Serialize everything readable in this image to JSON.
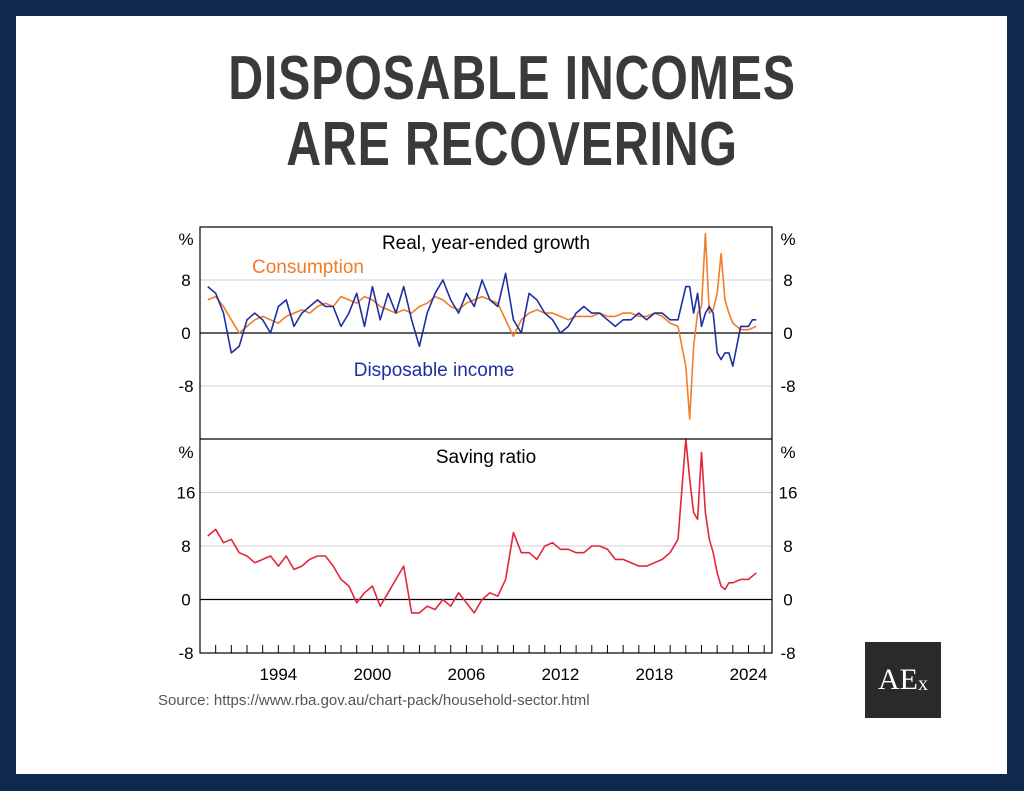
{
  "title": {
    "line1": "DISPOSABLE INCOMES",
    "line2": "ARE RECOVERING"
  },
  "source": "Source: https://www.rba.gov.au/chart-pack/household-sector.html",
  "logo": {
    "text": "AE",
    "sub": "x"
  },
  "colors": {
    "frame": "#0f2a4c",
    "consumption": "#f07d28",
    "income": "#1f2fa3",
    "saving": "#e0283c"
  },
  "chart_data": [
    {
      "type": "line",
      "title": "Real, year-ended growth",
      "ylabel": "%",
      "ylim": [
        -16,
        16
      ],
      "yticks": [
        "8",
        "0",
        "-8"
      ],
      "xlim": [
        1989,
        2025.5
      ],
      "series": [
        {
          "name": "Consumption",
          "color": "#f07d28",
          "x": [
            1989.5,
            1990,
            1990.5,
            1991,
            1991.5,
            1992,
            1992.5,
            1993,
            1993.5,
            1994,
            1994.5,
            1995,
            1995.5,
            1996,
            1996.5,
            1997,
            1997.5,
            1998,
            1998.5,
            1999,
            1999.5,
            2000,
            2000.5,
            2001,
            2001.5,
            2002,
            2002.5,
            2003,
            2003.5,
            2004,
            2004.5,
            2005,
            2005.5,
            2006,
            2006.5,
            2007,
            2007.5,
            2008,
            2008.5,
            2009,
            2009.5,
            2010,
            2010.5,
            2011,
            2011.5,
            2012,
            2012.5,
            2013,
            2013.5,
            2014,
            2014.5,
            2015,
            2015.5,
            2016,
            2016.5,
            2017,
            2017.5,
            2018,
            2018.5,
            2019,
            2019.5,
            2020,
            2020.25,
            2020.5,
            2020.75,
            2021,
            2021.25,
            2021.5,
            2021.75,
            2022,
            2022.25,
            2022.5,
            2022.75,
            2023,
            2023.5,
            2024,
            2024.5
          ],
          "y": [
            5,
            5.5,
            4,
            2,
            0,
            1,
            2,
            2.5,
            2,
            1.5,
            2.5,
            3,
            3.5,
            3,
            4,
            4.5,
            4,
            5.5,
            5,
            4.5,
            5.5,
            5,
            4,
            3.5,
            3,
            3.5,
            3,
            4,
            4.5,
            5.5,
            5,
            4,
            3.5,
            4.5,
            5,
            5.5,
            5,
            4.5,
            2,
            -0.5,
            2,
            3,
            3.5,
            3,
            3,
            2.5,
            2,
            2.5,
            2.5,
            2.5,
            3,
            2.5,
            2.5,
            3,
            3,
            2.5,
            2.5,
            3,
            2.5,
            1.5,
            1,
            -5,
            -13,
            -2,
            3,
            4,
            15,
            3,
            3.5,
            6,
            12,
            5,
            3,
            1.5,
            0.5,
            0.5,
            1
          ]
        },
        {
          "name": "Disposable income",
          "color": "#1f2fa3",
          "x": [
            1989.5,
            1990,
            1990.5,
            1991,
            1991.5,
            1992,
            1992.5,
            1993,
            1993.5,
            1994,
            1994.5,
            1995,
            1995.5,
            1996,
            1996.5,
            1997,
            1997.5,
            1998,
            1998.5,
            1999,
            1999.5,
            2000,
            2000.5,
            2001,
            2001.5,
            2002,
            2002.5,
            2003,
            2003.5,
            2004,
            2004.5,
            2005,
            2005.5,
            2006,
            2006.5,
            2007,
            2007.5,
            2008,
            2008.5,
            2009,
            2009.5,
            2010,
            2010.5,
            2011,
            2011.5,
            2012,
            2012.5,
            2013,
            2013.5,
            2014,
            2014.5,
            2015,
            2015.5,
            2016,
            2016.5,
            2017,
            2017.5,
            2018,
            2018.5,
            2019,
            2019.5,
            2020,
            2020.25,
            2020.5,
            2020.75,
            2021,
            2021.25,
            2021.5,
            2021.75,
            2022,
            2022.25,
            2022.5,
            2022.75,
            2023,
            2023.5,
            2024,
            2024.25,
            2024.5
          ],
          "y": [
            7,
            6,
            3,
            -3,
            -2,
            2,
            3,
            2,
            0,
            4,
            5,
            1,
            3,
            4,
            5,
            4,
            4,
            1,
            3,
            6,
            1,
            7,
            2,
            6,
            3,
            7,
            2,
            -2,
            3,
            6,
            8,
            5,
            3,
            6,
            4,
            8,
            5,
            4,
            9,
            2,
            0,
            6,
            5,
            3,
            2,
            0,
            1,
            3,
            4,
            3,
            3,
            2,
            1,
            2,
            2,
            3,
            2,
            3,
            3,
            2,
            2,
            7,
            7,
            3,
            6,
            1,
            3,
            4,
            3,
            -3,
            -4,
            -3,
            -3,
            -5,
            1,
            1,
            2,
            2
          ]
        }
      ],
      "annotations": [
        "Consumption",
        "Disposable income"
      ]
    },
    {
      "type": "line",
      "title": "Saving ratio",
      "ylabel": "%",
      "ylim": [
        -8,
        24
      ],
      "yticks": [
        "16",
        "8",
        "0",
        "-8"
      ],
      "xlim": [
        1989,
        2025.5
      ],
      "xticks": [
        "1994",
        "2000",
        "2006",
        "2012",
        "2018",
        "2024"
      ],
      "series": [
        {
          "name": "Saving ratio",
          "color": "#e0283c",
          "x": [
            1989.5,
            1990,
            1990.5,
            1991,
            1991.5,
            1992,
            1992.5,
            1993,
            1993.5,
            1994,
            1994.5,
            1995,
            1995.5,
            1996,
            1996.5,
            1997,
            1997.5,
            1998,
            1998.5,
            1999,
            1999.5,
            2000,
            2000.5,
            2001,
            2001.5,
            2002,
            2002.5,
            2003,
            2003.5,
            2004,
            2004.5,
            2005,
            2005.5,
            2006,
            2006.5,
            2007,
            2007.5,
            2008,
            2008.5,
            2009,
            2009.5,
            2010,
            2010.5,
            2011,
            2011.5,
            2012,
            2012.5,
            2013,
            2013.5,
            2014,
            2014.5,
            2015,
            2015.5,
            2016,
            2016.5,
            2017,
            2017.5,
            2018,
            2018.5,
            2019,
            2019.5,
            2020,
            2020.25,
            2020.5,
            2020.75,
            2021,
            2021.25,
            2021.5,
            2021.75,
            2022,
            2022.25,
            2022.5,
            2022.75,
            2023,
            2023.5,
            2024,
            2024.5
          ],
          "y": [
            9.5,
            10.5,
            8.5,
            9,
            7,
            6.5,
            5.5,
            6,
            6.5,
            5,
            6.5,
            4.5,
            5,
            6,
            6.5,
            6.5,
            5,
            3,
            2,
            -0.5,
            1,
            2,
            -1,
            1,
            3,
            5,
            -2,
            -2,
            -1,
            -1.5,
            0,
            -1,
            1,
            -0.5,
            -2,
            0,
            1,
            0.5,
            3,
            10,
            7,
            7,
            6,
            8,
            8.5,
            7.5,
            7.5,
            7,
            7,
            8,
            8,
            7.5,
            6,
            6,
            5.5,
            5,
            5,
            5.5,
            6,
            7,
            9,
            24,
            18,
            13,
            12,
            22,
            13,
            9,
            7,
            4,
            2,
            1.5,
            2.5,
            2.5,
            3,
            3,
            4
          ]
        }
      ]
    }
  ]
}
